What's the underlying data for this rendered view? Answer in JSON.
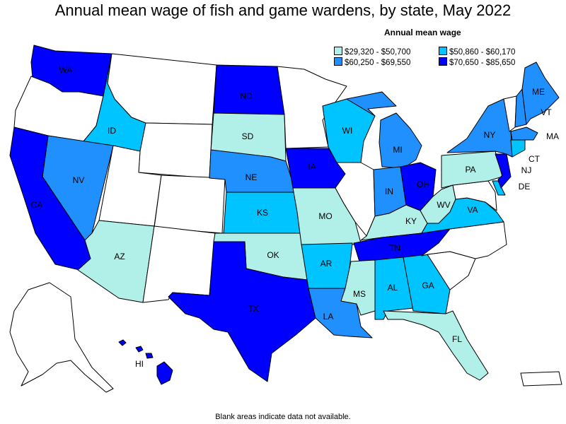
{
  "title": "Annual mean wage of fish and game wardens, by state, May 2022",
  "legend": {
    "title": "Annual mean wage",
    "items": [
      {
        "label": "$29,320 - $50,700",
        "color": "#b0f0e8"
      },
      {
        "label": "$50,860 - $60,170",
        "color": "#00c4ff"
      },
      {
        "label": "$60,250 - $69,550",
        "color": "#2090ff"
      },
      {
        "label": "$70,650 - $85,650",
        "color": "#0000ff"
      }
    ]
  },
  "footnote": "Blank areas indicate data not available.",
  "colors": {
    "nodata": "#ffffff",
    "border": "#000000"
  },
  "states": {
    "WA": {
      "label": "WA",
      "bin": 3
    },
    "ID": {
      "label": "ID",
      "bin": 1
    },
    "ND": {
      "label": "ND",
      "bin": 3
    },
    "SD": {
      "label": "SD",
      "bin": 0
    },
    "NE": {
      "label": "NE",
      "bin": 2
    },
    "KS": {
      "label": "KS",
      "bin": 1
    },
    "OK": {
      "label": "OK",
      "bin": 0
    },
    "TX": {
      "label": "TX",
      "bin": 3
    },
    "NV": {
      "label": "NV",
      "bin": 2
    },
    "CA": {
      "label": "CA",
      "bin": 3
    },
    "AZ": {
      "label": "AZ",
      "bin": 0
    },
    "IA": {
      "label": "IA",
      "bin": 3
    },
    "MO": {
      "label": "MO",
      "bin": 0
    },
    "AR": {
      "label": "AR",
      "bin": 1
    },
    "LA": {
      "label": "LA",
      "bin": 2
    },
    "MS": {
      "label": "MS",
      "bin": 0
    },
    "AL": {
      "label": "AL",
      "bin": 1
    },
    "GA": {
      "label": "GA",
      "bin": 1
    },
    "FL": {
      "label": "FL",
      "bin": 0
    },
    "TN": {
      "label": "TN",
      "bin": 3
    },
    "KY": {
      "label": "KY",
      "bin": 0
    },
    "WI": {
      "label": "WI",
      "bin": 1
    },
    "MI": {
      "label": "MI",
      "bin": 2
    },
    "IN": {
      "label": "IN",
      "bin": 2
    },
    "OH": {
      "label": "OH",
      "bin": 3
    },
    "WV": {
      "label": "WV",
      "bin": 0
    },
    "VA": {
      "label": "VA",
      "bin": 1
    },
    "PA": {
      "label": "PA",
      "bin": 0
    },
    "NY": {
      "label": "NY",
      "bin": 2
    },
    "ME": {
      "label": "ME",
      "bin": 2
    },
    "VT": {
      "label": "VT",
      "bin": -1
    },
    "NH": {
      "label": "",
      "bin": 2
    },
    "MA": {
      "label": "MA",
      "bin": 2
    },
    "CT": {
      "label": "CT",
      "bin": 1
    },
    "NJ": {
      "label": "NJ",
      "bin": 3
    },
    "DE": {
      "label": "DE",
      "bin": 1
    },
    "HI": {
      "label": "HI",
      "bin": 3
    },
    "OR": {
      "label": "",
      "bin": -1
    },
    "MT": {
      "label": "",
      "bin": -1
    },
    "WY": {
      "label": "",
      "bin": -1
    },
    "UT": {
      "label": "",
      "bin": -1
    },
    "CO": {
      "label": "",
      "bin": -1
    },
    "NM": {
      "label": "",
      "bin": -1
    },
    "MN": {
      "label": "",
      "bin": -1
    },
    "IL": {
      "label": "",
      "bin": -1
    },
    "NC": {
      "label": "",
      "bin": -1
    },
    "SC": {
      "label": "",
      "bin": -1
    },
    "MD": {
      "label": "",
      "bin": -1
    },
    "AK": {
      "label": "",
      "bin": -1
    },
    "PR": {
      "label": "",
      "bin": -1
    }
  }
}
